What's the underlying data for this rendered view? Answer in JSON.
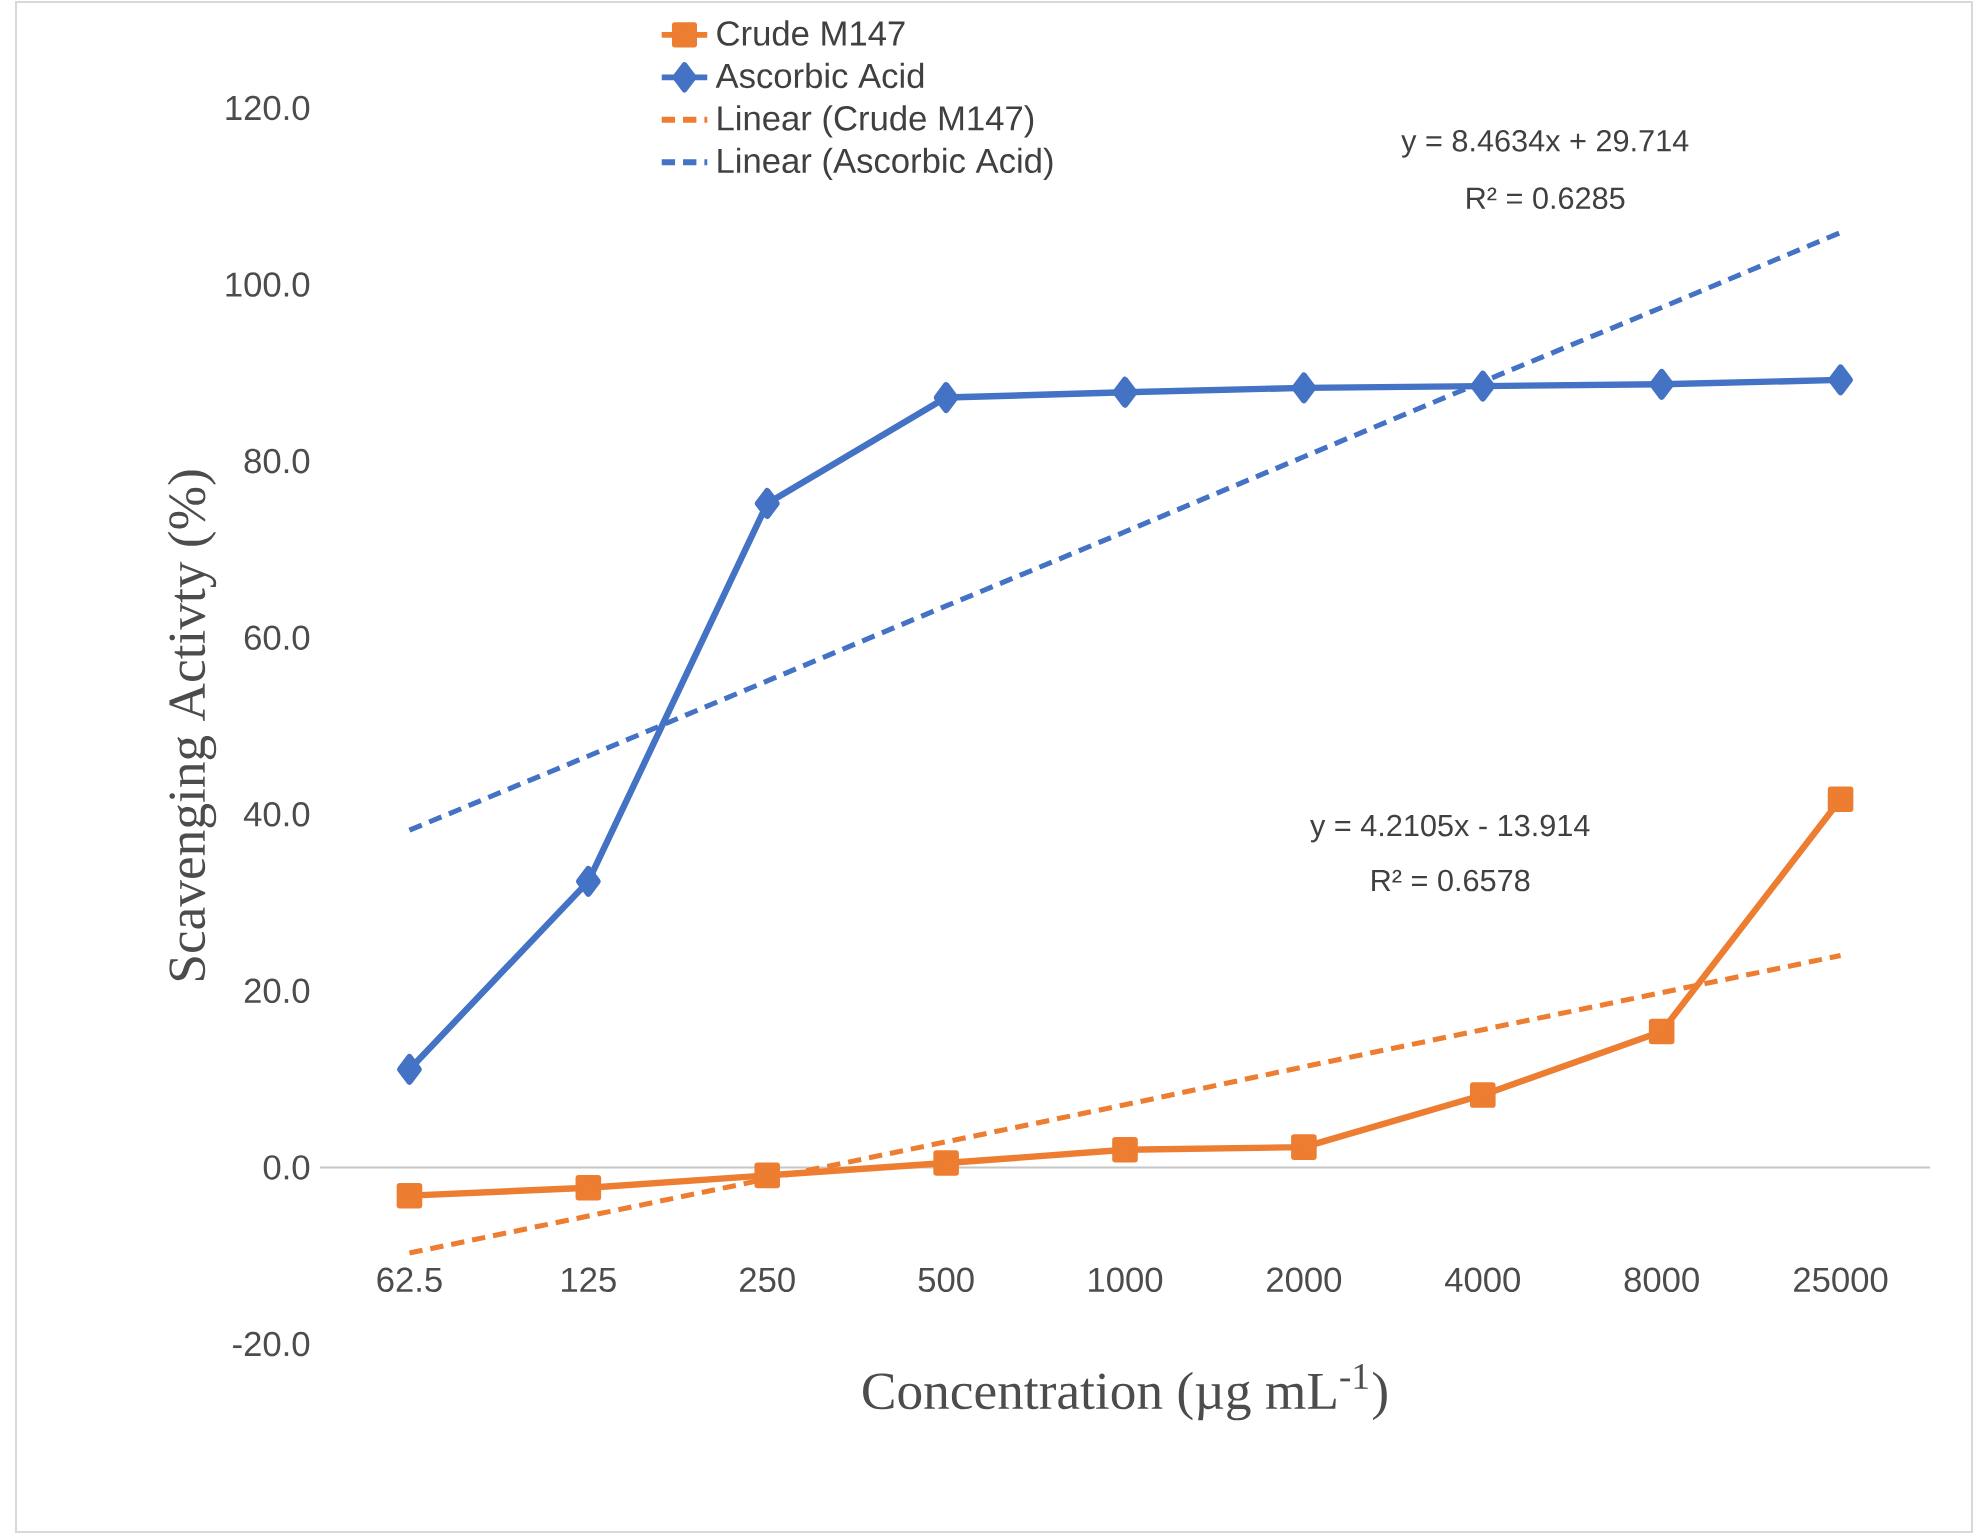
{
  "chart_data": {
    "type": "line",
    "xlabel": "Concentration (µg mL$^{-1}$)",
    "ylabel": "Scavenging Activty (%)",
    "categories": [
      "62.5",
      "125",
      "250",
      "500",
      "1000",
      "2000",
      "4000",
      "8000",
      "25000"
    ],
    "series": [
      {
        "name": "Crude M147",
        "color": "#ed7d31",
        "marker": "square",
        "line_style": "solid",
        "values": [
          -3.2,
          -2.3,
          -0.9,
          0.5,
          2.0,
          2.3,
          8.2,
          15.4,
          41.7
        ]
      },
      {
        "name": "Ascorbic Acid",
        "color": "#4472c4",
        "marker": "diamond",
        "line_style": "solid",
        "values": [
          11.1,
          32.4,
          75.2,
          87.2,
          87.8,
          88.3,
          88.5,
          88.7,
          89.2
        ]
      },
      {
        "name": "Linear (Crude M147)",
        "color": "#ed7d31",
        "marker": "none",
        "line_style": "dashed",
        "values": [
          -9.7,
          -5.5,
          -1.3,
          2.9,
          7.1,
          11.4,
          15.6,
          19.8,
          24.0
        ]
      },
      {
        "name": "Linear (Ascorbic Acid)",
        "color": "#4472c4",
        "marker": "none",
        "line_style": "dashed",
        "values": [
          38.2,
          46.6,
          55.1,
          63.6,
          72.0,
          80.5,
          89.0,
          97.4,
          105.9
        ]
      }
    ],
    "ylim": [
      -20,
      120
    ],
    "yticks": [
      {
        "value": -20,
        "label": "-20.0"
      },
      {
        "value": 0,
        "label": "0.0"
      },
      {
        "value": 20,
        "label": "20.0"
      },
      {
        "value": 40,
        "label": "40.0"
      },
      {
        "value": 60,
        "label": "60.0"
      },
      {
        "value": 80,
        "label": "80.0"
      },
      {
        "value": 100,
        "label": "100.0"
      },
      {
        "value": 120,
        "label": "120.0"
      }
    ],
    "legend": "top",
    "annotations": [
      "y = 8.4634x + 29.714",
      "R² = 0.6285",
      "y = 4.2105x - 13.914",
      "R² = 0.6578"
    ]
  }
}
